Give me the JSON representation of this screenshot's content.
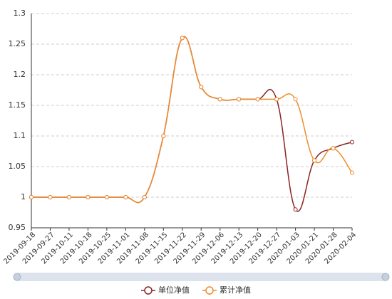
{
  "chart_data": {
    "type": "line",
    "categories": [
      "2019-09-18",
      "2019-09-27",
      "2019-10-11",
      "2019-10-18",
      "2019-10-25",
      "2019-11-01",
      "2019-11-08",
      "2019-11-15",
      "2019-11-22",
      "2019-11-29",
      "2019-12-06",
      "2019-12-13",
      "2019-12-20",
      "2019-12-27",
      "2020-01-03",
      "2020-01-21",
      "2020-01-28",
      "2020-02-04"
    ],
    "series": [
      {
        "name": "单位净值",
        "color": "#8b2323",
        "values": [
          1,
          1,
          1,
          1,
          1,
          1,
          1,
          1.1,
          1.26,
          1.18,
          1.16,
          1.16,
          1.16,
          1.16,
          0.98,
          1.06,
          1.08,
          1.09
        ]
      },
      {
        "name": "累计净值",
        "color": "#ee8c2c",
        "values": [
          1,
          1,
          1,
          1,
          1,
          1,
          1,
          1.1,
          1.26,
          1.18,
          1.16,
          1.16,
          1.16,
          1.16,
          1.16,
          1.06,
          1.08,
          1.04
        ]
      }
    ],
    "ylim": [
      0.95,
      1.3
    ],
    "yticks": [
      0.95,
      1,
      1.05,
      1.1,
      1.15,
      1.2,
      1.25,
      1.3
    ],
    "grid": true,
    "smooth": true,
    "legend": "bottom"
  }
}
